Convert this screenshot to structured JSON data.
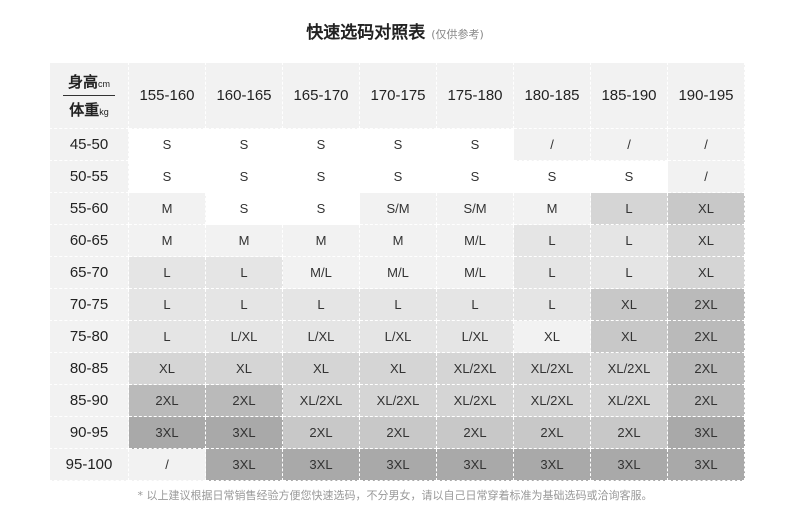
{
  "title": "快速选码对照表",
  "subtitle": "(仅供参考)",
  "corner": {
    "height_label": "身高",
    "height_unit": "cm",
    "weight_label": "体重",
    "weight_unit": "kg"
  },
  "columns": [
    "155-160",
    "160-165",
    "165-170",
    "170-175",
    "175-180",
    "180-185",
    "185-190",
    "190-195"
  ],
  "rows": [
    {
      "weight": "45-50",
      "sizes": [
        "S",
        "S",
        "S",
        "S",
        "S",
        "/",
        "/",
        "/"
      ],
      "shades": [
        0,
        0,
        0,
        0,
        0,
        1,
        1,
        1
      ]
    },
    {
      "weight": "50-55",
      "sizes": [
        "S",
        "S",
        "S",
        "S",
        "S",
        "S",
        "S",
        "/"
      ],
      "shades": [
        0,
        0,
        0,
        0,
        0,
        0,
        0,
        1
      ]
    },
    {
      "weight": "55-60",
      "sizes": [
        "M",
        "S",
        "S",
        "S/M",
        "S/M",
        "M",
        "L",
        "XL"
      ],
      "shades": [
        1,
        0,
        0,
        1,
        1,
        1,
        3,
        4
      ]
    },
    {
      "weight": "60-65",
      "sizes": [
        "M",
        "M",
        "M",
        "M",
        "M/L",
        "L",
        "L",
        "XL"
      ],
      "shades": [
        1,
        1,
        1,
        1,
        1,
        2,
        2,
        3
      ]
    },
    {
      "weight": "65-70",
      "sizes": [
        "L",
        "L",
        "M/L",
        "M/L",
        "M/L",
        "L",
        "L",
        "XL"
      ],
      "shades": [
        2,
        2,
        1,
        1,
        1,
        2,
        2,
        3
      ]
    },
    {
      "weight": "70-75",
      "sizes": [
        "L",
        "L",
        "L",
        "L",
        "L",
        "L",
        "XL",
        "2XL"
      ],
      "shades": [
        2,
        2,
        2,
        2,
        2,
        2,
        4,
        5
      ]
    },
    {
      "weight": "75-80",
      "sizes": [
        "L",
        "L/XL",
        "L/XL",
        "L/XL",
        "L/XL",
        "XL",
        "XL",
        "2XL"
      ],
      "shades": [
        2,
        2,
        2,
        2,
        2,
        1,
        4,
        5
      ]
    },
    {
      "weight": "80-85",
      "sizes": [
        "XL",
        "XL",
        "XL",
        "XL",
        "XL/2XL",
        "XL/2XL",
        "XL/2XL",
        "2XL"
      ],
      "shades": [
        3,
        3,
        3,
        3,
        3,
        3,
        3,
        5
      ]
    },
    {
      "weight": "85-90",
      "sizes": [
        "2XL",
        "2XL",
        "XL/2XL",
        "XL/2XL",
        "XL/2XL",
        "XL/2XL",
        "XL/2XL",
        "2XL"
      ],
      "shades": [
        5,
        5,
        3,
        3,
        3,
        3,
        3,
        5
      ]
    },
    {
      "weight": "90-95",
      "sizes": [
        "3XL",
        "3XL",
        "2XL",
        "2XL",
        "2XL",
        "2XL",
        "2XL",
        "3XL"
      ],
      "shades": [
        6,
        6,
        4,
        4,
        4,
        4,
        4,
        6
      ]
    },
    {
      "weight": "95-100",
      "sizes": [
        "/",
        "3XL",
        "3XL",
        "3XL",
        "3XL",
        "3XL",
        "3XL",
        "3XL"
      ],
      "shades": [
        1,
        6,
        6,
        6,
        6,
        6,
        6,
        6
      ]
    }
  ],
  "shade_colors": [
    "#ffffff",
    "#f2f2f2",
    "#e5e5e5",
    "#d5d5d5",
    "#c8c8c8",
    "#bababa",
    "#a9a9a9"
  ],
  "note": "* 以上建议根据日常销售经验方便您快速选码，不分男女，请以自己日常穿着标准为基础选码或洽询客服。"
}
